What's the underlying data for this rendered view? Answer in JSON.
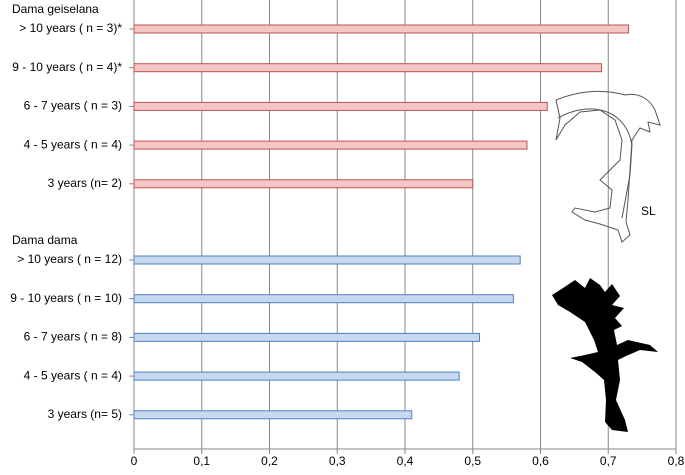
{
  "chart_data": {
    "type": "bar",
    "orientation": "horizontal",
    "groups": [
      {
        "name": "Dama geiselana",
        "color": "#f5c6c6",
        "edge": "#c0504d",
        "categories": [
          "> 10 years ( n = 3)*",
          "9 - 10 years ( n = 4)*",
          "6 - 7 years ( n = 3)",
          "4 - 5 years ( n = 4)",
          "3 years (n= 2)"
        ],
        "values": [
          0.73,
          0.69,
          0.61,
          0.58,
          0.5
        ]
      },
      {
        "name": "Dama dama",
        "color": "#c6d9f1",
        "edge": "#4f81bd",
        "categories": [
          "> 10 years ( n = 12)",
          "9 - 10 years ( n = 10)",
          "6 - 7 years ( n = 8)",
          "4 - 5 years ( n = 4)",
          "3 years (n= 5)"
        ],
        "values": [
          0.57,
          0.56,
          0.51,
          0.48,
          0.41
        ]
      }
    ],
    "xlim": [
      0,
      0.8
    ],
    "xticks": [
      0,
      {
        "value": 0.1,
        "label": "0,1"
      },
      {
        "value": 0.2,
        "label": "0,2"
      },
      {
        "value": 0.3,
        "label": "0,3"
      },
      {
        "value": 0.4,
        "label": "0,4"
      },
      {
        "value": 0.5,
        "label": "0,5"
      },
      {
        "value": 0.6,
        "label": "0,6"
      },
      {
        "value": 0.7,
        "label": "0,7"
      },
      {
        "value": 0.8,
        "label": "0,8"
      }
    ],
    "grid": true,
    "annotation": "SL"
  }
}
